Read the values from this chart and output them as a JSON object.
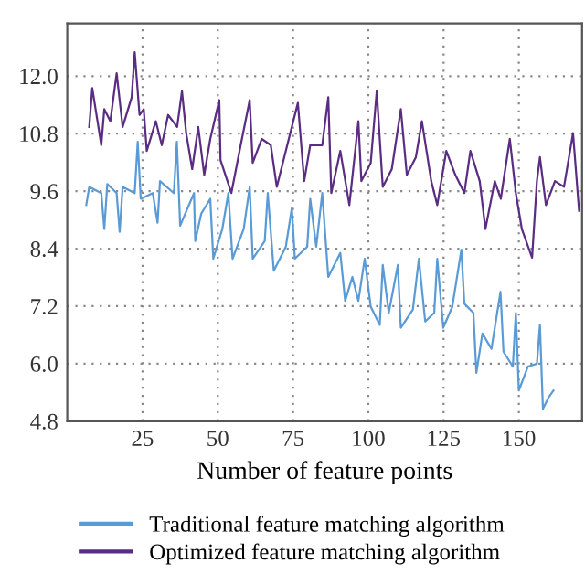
{
  "chart_data": {
    "type": "line",
    "xlabel": "Number of feature points",
    "xlim": [
      0,
      171
    ],
    "xticks": [
      25,
      50,
      75,
      100,
      125,
      150
    ],
    "ylim": [
      4.8,
      13.1
    ],
    "yticks": [
      {
        "value": 4.8,
        "label": "4.8"
      },
      {
        "value": 6.0,
        "label": "6.0"
      },
      {
        "value": 7.2,
        "label": "7.2"
      },
      {
        "value": 8.4,
        "label": "8.4"
      },
      {
        "value": 9.6,
        "label": "9.6"
      },
      {
        "value": 10.8,
        "label": "10.8"
      },
      {
        "value": 12.0,
        "label": "12.0"
      }
    ],
    "grid": true,
    "legend": "bottom",
    "line_style": "solid",
    "marker": "none",
    "series": [
      {
        "name": "Traditional feature matching algorithm",
        "color": "#5b9bd5",
        "x": [
          6.3,
          7.3,
          11.3,
          12.3,
          13.3,
          16.4,
          17.4,
          18.4,
          22.4,
          23.4,
          24.4,
          28.4,
          30,
          30.8,
          35.4,
          36.4,
          37.5,
          42.1,
          42.5,
          44.5,
          47.5,
          48.5,
          51.5,
          53.5,
          54.9,
          58.6,
          60.6,
          61.6,
          65.6,
          66.6,
          68.6,
          72.6,
          74.6,
          75.6,
          79.7,
          80.7,
          82.7,
          84.7,
          86.7,
          90.7,
          92.3,
          94.7,
          96.7,
          98.8,
          100.8,
          103.8,
          104.8,
          106.8,
          109.8,
          110.8,
          114.8,
          116.8,
          118.9,
          121.9,
          122.9,
          124.9,
          127.9,
          130.9,
          131.9,
          134.9,
          135.9,
          137.9,
          140.9,
          143.9,
          144.9,
          148,
          149,
          150,
          153,
          156,
          157,
          158,
          160,
          161.5
        ],
        "values": [
          9.31,
          9.69,
          9.56,
          8.81,
          9.75,
          9.56,
          8.75,
          9.69,
          9.56,
          10.63,
          9.44,
          9.56,
          8.94,
          9.81,
          9.56,
          10.63,
          8.88,
          9.56,
          8.56,
          9.13,
          9.44,
          8.19,
          8.81,
          9.56,
          8.19,
          8.81,
          9.69,
          8.19,
          8.56,
          9.56,
          7.94,
          8.44,
          9.25,
          8.19,
          8.44,
          9.44,
          8.44,
          9.56,
          7.81,
          8.31,
          7.31,
          7.81,
          7.31,
          8.19,
          7.19,
          6.81,
          8.06,
          7.06,
          8.06,
          6.75,
          7.13,
          8.19,
          6.88,
          7.06,
          8.19,
          6.75,
          7.19,
          8.38,
          7.25,
          7.06,
          5.81,
          6.63,
          6.31,
          7.5,
          6.25,
          5.94,
          7.06,
          5.44,
          5.94,
          6.0,
          6.81,
          5.06,
          5.31,
          5.44
        ]
      },
      {
        "name": "Optimized feature matching algorithm",
        "color": "#5a2d82",
        "x": [
          7.3,
          8.3,
          11.3,
          12.3,
          14.3,
          16.4,
          18.4,
          21.4,
          22.4,
          24,
          25.4,
          26.4,
          29.4,
          31.4,
          33.5,
          36.5,
          38.1,
          39.5,
          41.5,
          43.5,
          45.5,
          47.5,
          50.5,
          50.9,
          54.5,
          57.6,
          60.6,
          61.6,
          64.6,
          67.6,
          69.6,
          72.6,
          76.6,
          78.7,
          80.7,
          84.7,
          86.7,
          87.7,
          90.7,
          93.7,
          96.7,
          97.7,
          100.8,
          102.8,
          104.8,
          107.8,
          110.8,
          112.8,
          115.8,
          117.8,
          120.9,
          122.9,
          125.9,
          128.9,
          131.9,
          133.9,
          137,
          138.9,
          142,
          144,
          147,
          149,
          151,
          154.4,
          156,
          157,
          159,
          162,
          165,
          168,
          170
        ],
        "values": [
          10.94,
          11.75,
          10.56,
          11.31,
          11.06,
          12.06,
          10.94,
          11.56,
          12.5,
          11.19,
          11.31,
          10.44,
          11.06,
          10.56,
          11.19,
          10.94,
          11.69,
          10.81,
          10.06,
          10.94,
          9.94,
          10.69,
          11.5,
          10.25,
          9.56,
          10.56,
          11.5,
          10.19,
          10.69,
          10.56,
          9.69,
          10.44,
          11.44,
          9.81,
          10.56,
          10.56,
          11.56,
          9.56,
          10.44,
          9.31,
          11.06,
          9.81,
          10.19,
          11.69,
          9.69,
          10.06,
          11.31,
          9.94,
          10.31,
          11.06,
          9.81,
          9.31,
          10.44,
          9.94,
          9.56,
          10.44,
          9.81,
          8.81,
          9.81,
          9.44,
          10.69,
          9.56,
          8.81,
          8.21,
          9.81,
          10.31,
          9.31,
          9.81,
          9.69,
          10.81,
          9.19
        ]
      }
    ]
  }
}
